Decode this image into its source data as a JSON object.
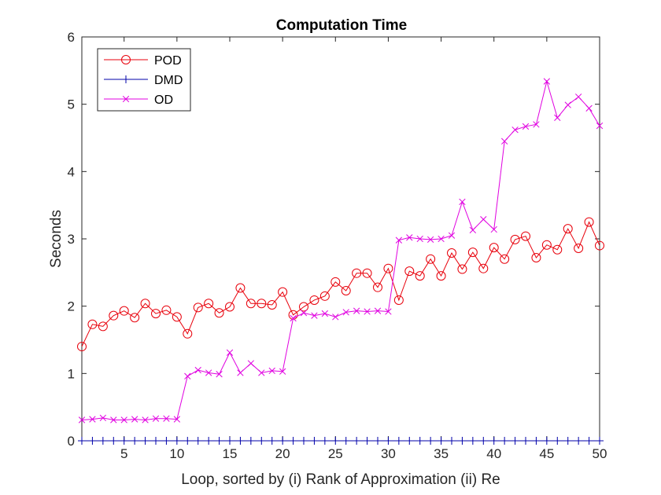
{
  "chart_data": {
    "type": "line",
    "title": "Computation Time",
    "xlabel": "Loop, sorted by (i) Rank of Approximation (ii) Re",
    "ylabel": "Seconds",
    "xlim": [
      1,
      50
    ],
    "ylim": [
      0,
      6
    ],
    "x_ticks": [
      5,
      10,
      15,
      20,
      25,
      30,
      35,
      40,
      45,
      50
    ],
    "y_ticks": [
      0,
      1,
      2,
      3,
      4,
      5,
      6
    ],
    "grid": false,
    "legend": "top-left",
    "x": [
      1,
      2,
      3,
      4,
      5,
      6,
      7,
      8,
      9,
      10,
      11,
      12,
      13,
      14,
      15,
      16,
      17,
      18,
      19,
      20,
      21,
      22,
      23,
      24,
      25,
      26,
      27,
      28,
      29,
      30,
      31,
      32,
      33,
      34,
      35,
      36,
      37,
      38,
      39,
      40,
      41,
      42,
      43,
      44,
      45,
      46,
      47,
      48,
      49,
      50
    ],
    "series": [
      {
        "name": "POD",
        "color": "#e8000b",
        "marker": "circle",
        "values": [
          1.4,
          1.73,
          1.7,
          1.86,
          1.93,
          1.83,
          2.04,
          1.89,
          1.94,
          1.84,
          1.59,
          1.98,
          2.04,
          1.9,
          1.99,
          2.27,
          2.04,
          2.04,
          2.02,
          2.21,
          1.87,
          1.99,
          2.09,
          2.15,
          2.36,
          2.23,
          2.49,
          2.49,
          2.28,
          2.56,
          2.09,
          2.52,
          2.45,
          2.7,
          2.45,
          2.79,
          2.55,
          2.8,
          2.56,
          2.87,
          2.7,
          2.99,
          3.04,
          2.72,
          2.91,
          2.84,
          3.15,
          2.86,
          3.25,
          2.9
        ]
      },
      {
        "name": "DMD",
        "color": "#0000aa",
        "marker": "plus",
        "values": [
          0,
          0,
          0,
          0,
          0,
          0,
          0,
          0,
          0,
          0,
          0,
          0,
          0,
          0,
          0,
          0,
          0,
          0,
          0,
          0,
          0,
          0,
          0,
          0,
          0,
          0,
          0,
          0,
          0,
          0,
          0,
          0,
          0,
          0,
          0,
          0,
          0,
          0,
          0,
          0,
          0,
          0,
          0,
          0,
          0,
          0,
          0,
          0,
          0,
          0
        ]
      },
      {
        "name": "OD",
        "color": "#e000e0",
        "marker": "x",
        "values": [
          0.31,
          0.32,
          0.34,
          0.31,
          0.31,
          0.32,
          0.31,
          0.33,
          0.33,
          0.32,
          0.96,
          1.05,
          1.01,
          0.99,
          1.31,
          1.01,
          1.15,
          1.01,
          1.04,
          1.03,
          1.82,
          1.9,
          1.86,
          1.89,
          1.84,
          1.91,
          1.93,
          1.92,
          1.93,
          1.92,
          2.98,
          3.02,
          3.0,
          2.99,
          3.0,
          3.05,
          3.55,
          3.13,
          3.29,
          3.14,
          4.45,
          4.62,
          4.67,
          4.7,
          5.34,
          4.8,
          4.99,
          5.11,
          4.94,
          4.68
        ]
      }
    ]
  }
}
